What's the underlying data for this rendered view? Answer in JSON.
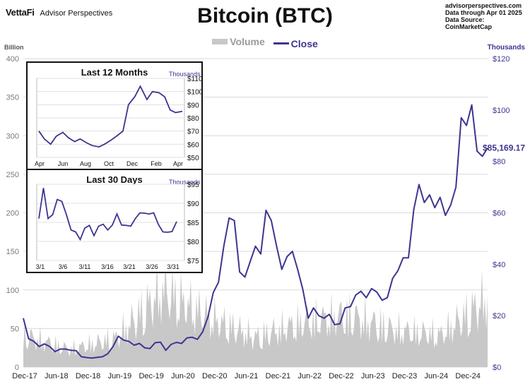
{
  "header": {
    "brand": "VettaFi",
    "brand_sub": "Advisor Perspectives",
    "title": "Bitcoin (BTC)",
    "source_lines": [
      "advisorperspectives.com",
      "Data through  Apr 01 2025",
      "Data Source:  CoinMarketCap"
    ]
  },
  "legend": {
    "volume": "Volume",
    "close": "Close"
  },
  "colors": {
    "close": "#3d3590",
    "volume": "#c8c8c8",
    "grid": "#d9d9d9",
    "axis_text": "#7a7a7a"
  },
  "chart_data": [
    {
      "type": "line",
      "title": "Bitcoin (BTC)",
      "left_axis": {
        "unit_label": "Billion",
        "ticks": [
          0,
          50,
          100,
          150,
          200,
          250,
          300,
          350,
          400
        ],
        "range": [
          0,
          400
        ]
      },
      "right_axis": {
        "unit_label": "Thousands",
        "ticks": [
          "$0",
          "$20",
          "$40",
          "$60",
          "$80",
          "$100",
          "$120"
        ],
        "range": [
          0,
          120
        ]
      },
      "x_ticks": [
        "Dec-17",
        "Jun-18",
        "Dec-18",
        "Jun-19",
        "Dec-19",
        "Jun-20",
        "Dec-20",
        "Jun-21",
        "Dec-21",
        "Jun-22",
        "Dec-22",
        "Jun-23",
        "Dec-23",
        "Jun-24",
        "Dec-24"
      ],
      "last_value_label": "$85,169.17",
      "grid": true,
      "legend_position": "top-center",
      "series": [
        {
          "name": "Close",
          "axis": "right",
          "units": "thousands USD",
          "x": [
            "2017-12",
            "2018-01",
            "2018-02",
            "2018-03",
            "2018-04",
            "2018-05",
            "2018-06",
            "2018-07",
            "2018-08",
            "2018-09",
            "2018-10",
            "2018-11",
            "2018-12",
            "2019-01",
            "2019-02",
            "2019-03",
            "2019-04",
            "2019-05",
            "2019-06",
            "2019-07",
            "2019-08",
            "2019-09",
            "2019-10",
            "2019-11",
            "2019-12",
            "2020-01",
            "2020-02",
            "2020-03",
            "2020-04",
            "2020-05",
            "2020-06",
            "2020-07",
            "2020-08",
            "2020-09",
            "2020-10",
            "2020-11",
            "2020-12",
            "2021-01",
            "2021-02",
            "2021-03",
            "2021-04",
            "2021-05",
            "2021-06",
            "2021-07",
            "2021-08",
            "2021-09",
            "2021-10",
            "2021-11",
            "2021-12",
            "2022-01",
            "2022-02",
            "2022-03",
            "2022-04",
            "2022-05",
            "2022-06",
            "2022-07",
            "2022-08",
            "2022-09",
            "2022-10",
            "2022-11",
            "2022-12",
            "2023-01",
            "2023-02",
            "2023-03",
            "2023-04",
            "2023-05",
            "2023-06",
            "2023-07",
            "2023-08",
            "2023-09",
            "2023-10",
            "2023-11",
            "2023-12",
            "2024-01",
            "2024-02",
            "2024-03",
            "2024-04",
            "2024-05",
            "2024-06",
            "2024-07",
            "2024-08",
            "2024-09",
            "2024-10",
            "2024-11",
            "2024-12",
            "2025-01",
            "2025-02",
            "2025-03",
            "2025-04"
          ],
          "values": [
            19,
            11,
            10,
            8,
            9,
            8,
            6,
            7,
            7,
            6.5,
            6.4,
            4,
            3.7,
            3.5,
            3.8,
            4,
            5.2,
            8,
            12,
            10.5,
            10,
            8.5,
            9.2,
            7.5,
            7.2,
            9.5,
            9.7,
            6.5,
            8.8,
            9.6,
            9.2,
            11.3,
            11.6,
            10.8,
            13.7,
            19.5,
            29,
            33,
            47,
            58,
            57,
            37,
            35,
            41,
            47,
            44,
            61,
            57,
            47,
            38,
            43,
            45,
            38,
            30,
            19,
            23,
            20,
            19,
            20.5,
            16.5,
            16.8,
            23,
            23.5,
            28,
            29.5,
            27,
            30.5,
            29.2,
            26,
            27,
            34.5,
            37.5,
            42.5,
            42.5,
            61.2,
            71,
            64,
            67,
            62,
            66,
            59,
            63,
            70,
            97,
            94,
            102,
            84,
            82,
            85.2
          ]
        },
        {
          "name": "Volume",
          "axis": "left",
          "units": "billion USD",
          "style": "area",
          "values_note_visible_peaks": [
            65,
            35,
            58,
            155,
            100,
            60,
            90,
            105,
            75,
            65,
            140
          ]
        }
      ]
    },
    {
      "type": "line",
      "title": "Last 12 Months",
      "axis_unit": "Thousands",
      "x_ticks": [
        "Apr",
        "Jun",
        "Aug",
        "Oct",
        "Dec",
        "Feb",
        "Apr"
      ],
      "y_ticks": [
        "$50",
        "$60",
        "$70",
        "$80",
        "$90",
        "$100",
        "$110"
      ],
      "ylim": [
        50,
        110
      ],
      "series": [
        {
          "name": "Close",
          "x": [
            "2024-04-01",
            "2024-04-15",
            "2024-05-01",
            "2024-05-15",
            "2024-06-01",
            "2024-06-15",
            "2024-07-01",
            "2024-07-15",
            "2024-08-01",
            "2024-08-15",
            "2024-09-01",
            "2024-09-15",
            "2024-10-01",
            "2024-10-15",
            "2024-11-01",
            "2024-11-15",
            "2024-12-01",
            "2024-12-15",
            "2025-01-01",
            "2025-01-15",
            "2025-02-01",
            "2025-02-15",
            "2025-03-01",
            "2025-03-15",
            "2025-04-01"
          ],
          "values": [
            70,
            64,
            60,
            66,
            69,
            65,
            62,
            64,
            61,
            59,
            58,
            60,
            63,
            66,
            70,
            90,
            96,
            104,
            94,
            100,
            99,
            96,
            86,
            84,
            85
          ]
        }
      ]
    },
    {
      "type": "line",
      "title": "Last 30 Days",
      "axis_unit": "Thousands",
      "x_ticks": [
        "3/1",
        "3/6",
        "3/11",
        "3/16",
        "3/21",
        "3/26",
        "3/31"
      ],
      "y_ticks": [
        "$75",
        "$80",
        "$85",
        "$90",
        "$95"
      ],
      "ylim": [
        75,
        95
      ],
      "series": [
        {
          "name": "Close",
          "x": [
            1,
            2,
            3,
            4,
            5,
            6,
            7,
            8,
            9,
            10,
            11,
            12,
            13,
            14,
            15,
            16,
            17,
            18,
            19,
            20,
            21,
            22,
            23,
            24,
            25,
            26,
            27,
            28,
            29,
            30,
            31
          ],
          "values": [
            86,
            94,
            86,
            87,
            91,
            90.5,
            87,
            83,
            82.5,
            80.5,
            83.5,
            84.2,
            81.5,
            84,
            84.5,
            83,
            84.3,
            87.2,
            84.3,
            84.2,
            84,
            86,
            87.5,
            87.4,
            87.2,
            87.5,
            84.5,
            82.5,
            82.4,
            82.6,
            85.2
          ]
        }
      ]
    }
  ]
}
